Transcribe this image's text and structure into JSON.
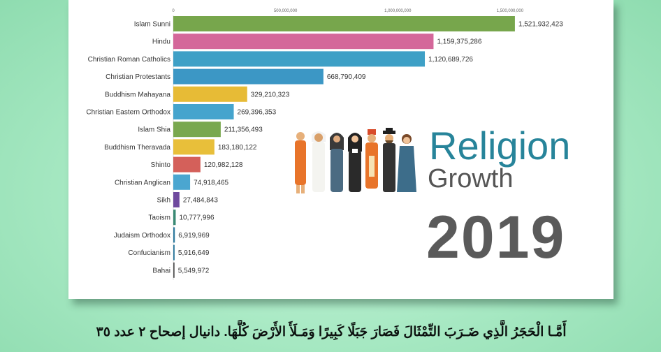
{
  "chart_data": {
    "type": "bar",
    "orientation": "horizontal",
    "categories": [
      "Islam Sunni",
      "Hindu",
      "Christian Roman Catholics",
      "Christian Protestants",
      "Buddhism Mahayana",
      "Christian Eastern Orthodox",
      "Islam Shia",
      "Buddhism Theravada",
      "Shinto",
      "Christian Anglican",
      "Sikh",
      "Taoism",
      "Judaism Orthodox",
      "Confucianism",
      "Bahai"
    ],
    "values": [
      1521932423,
      1159375286,
      1120689726,
      668790409,
      329210323,
      269396353,
      211356493,
      183180122,
      120982128,
      74918465,
      27484843,
      10777996,
      6919969,
      5916649,
      5549972
    ],
    "value_labels": [
      "1,521,932,423",
      "1,159,375,286",
      "1,120,689,726",
      "668,790,409",
      "329,210,323",
      "269,396,353",
      "211,356,493",
      "183,180,122",
      "120,982,128",
      "74,918,465",
      "27,484,843",
      "10,777,996",
      "6,919,969",
      "5,916,649",
      "5,549,972"
    ],
    "colors": [
      "#77a64c",
      "#d4679a",
      "#3ea0c6",
      "#3c97c5",
      "#e7bb36",
      "#45a4cd",
      "#79a84f",
      "#e8bf3a",
      "#d4605a",
      "#4ba6d0",
      "#6f4a9e",
      "#3a8a74",
      "#2f7a9e",
      "#2f7a9e",
      "#555555"
    ],
    "xlim": [
      0,
      1600000000
    ],
    "xticks": [
      0,
      500000000,
      1000000000,
      1500000000
    ],
    "xtick_labels": [
      "0",
      "500,000,000",
      "1,000,000,000",
      "1,500,000,000"
    ],
    "grid": false,
    "legend": "none"
  },
  "overlay": {
    "title_line1": "Religion",
    "title_line2": "Growth",
    "year": "2019",
    "people_icon": "people-of-various-faiths-illustration"
  },
  "subtitle": "أَمَّـا الْحَجَرُ الَّذِي ضَـرَبَ التِّمْثَالَ فَصَارَ جَبَلًا كَبِيرًا وَمَـلَأَ الأَرْضَ كُلَّهَا. دانيال إصحاح ٢ عدد ٣٥"
}
